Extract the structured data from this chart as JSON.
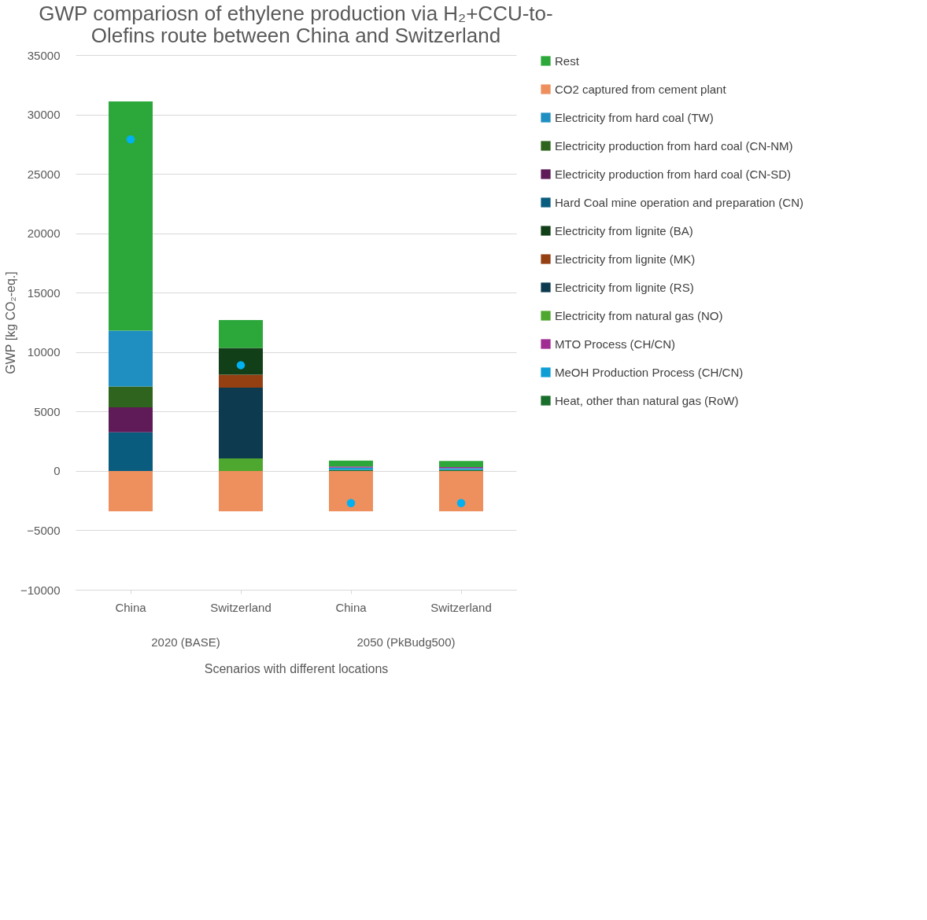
{
  "chart_data": {
    "type": "bar",
    "title": "GWP compariosn of ethylene production via H₂+CCU-to-Olefins route between China and Switzerland",
    "categories": [
      "China",
      "Switzerland",
      "China",
      "Switzerland"
    ],
    "xlabel": "Scenarios with different locations",
    "ylabel": "GWP [kg CO₂-eq.]",
    "annotations": [
      "2020 (BASE)",
      "2050 (PkBudg500)"
    ],
    "ylim": [
      -10000,
      35000
    ],
    "yticks": [
      -10000,
      -5000,
      0,
      5000,
      10000,
      15000,
      20000,
      25000,
      30000,
      35000
    ],
    "grid": "y",
    "legend": "right",
    "stacked": true,
    "series": [
      {
        "name": "Heat, other than natural gas (RoW)",
        "color": "#1a6e2b",
        "values": [
          0,
          0,
          100,
          90
        ]
      },
      {
        "name": "MeOH Production Process (CH/CN)",
        "color": "#0e9ed5",
        "values": [
          0,
          0,
          180,
          140
        ]
      },
      {
        "name": "MTO Process (CH/CN)",
        "color": "#a02b93",
        "values": [
          0,
          0,
          90,
          90
        ]
      },
      {
        "name": "Electricity from natural gas (NO)",
        "color": "#4ea72e",
        "values": [
          0,
          1050,
          0,
          0
        ]
      },
      {
        "name": "Electricity from lignite (RS)",
        "color": "#0e3a4f",
        "values": [
          0,
          5950,
          0,
          0
        ]
      },
      {
        "name": "Electricity from lignite (MK)",
        "color": "#944013",
        "values": [
          0,
          1100,
          0,
          0
        ]
      },
      {
        "name": "Electricity from lignite (BA)",
        "color": "#113f17",
        "values": [
          0,
          2250,
          0,
          0
        ]
      },
      {
        "name": "Hard Coal mine operation and preparation (CN)",
        "color": "#0a5c7f",
        "values": [
          3250,
          0,
          0,
          0
        ]
      },
      {
        "name": "Electricity production from hard coal (CN-SD)",
        "color": "#5e1b57",
        "values": [
          2100,
          0,
          0,
          0
        ]
      },
      {
        "name": "Electricity production from hard coal (CN-NM)",
        "color": "#2f641e",
        "values": [
          1750,
          0,
          0,
          0
        ]
      },
      {
        "name": "Electricity from hard coal (TW)",
        "color": "#1f8fc2",
        "values": [
          4700,
          0,
          0,
          0
        ]
      },
      {
        "name": "CO2 captured from cement plant",
        "color": "#ee8f5e",
        "values": [
          -3400,
          -3400,
          -3400,
          -3400
        ]
      },
      {
        "name": "Rest",
        "color": "#2ca83a",
        "values": [
          19300,
          2350,
          500,
          520
        ]
      },
      {
        "type": "scatter",
        "color": "#00b0f0",
        "values": [
          27900,
          8900,
          -2700,
          -2700
        ]
      }
    ]
  }
}
